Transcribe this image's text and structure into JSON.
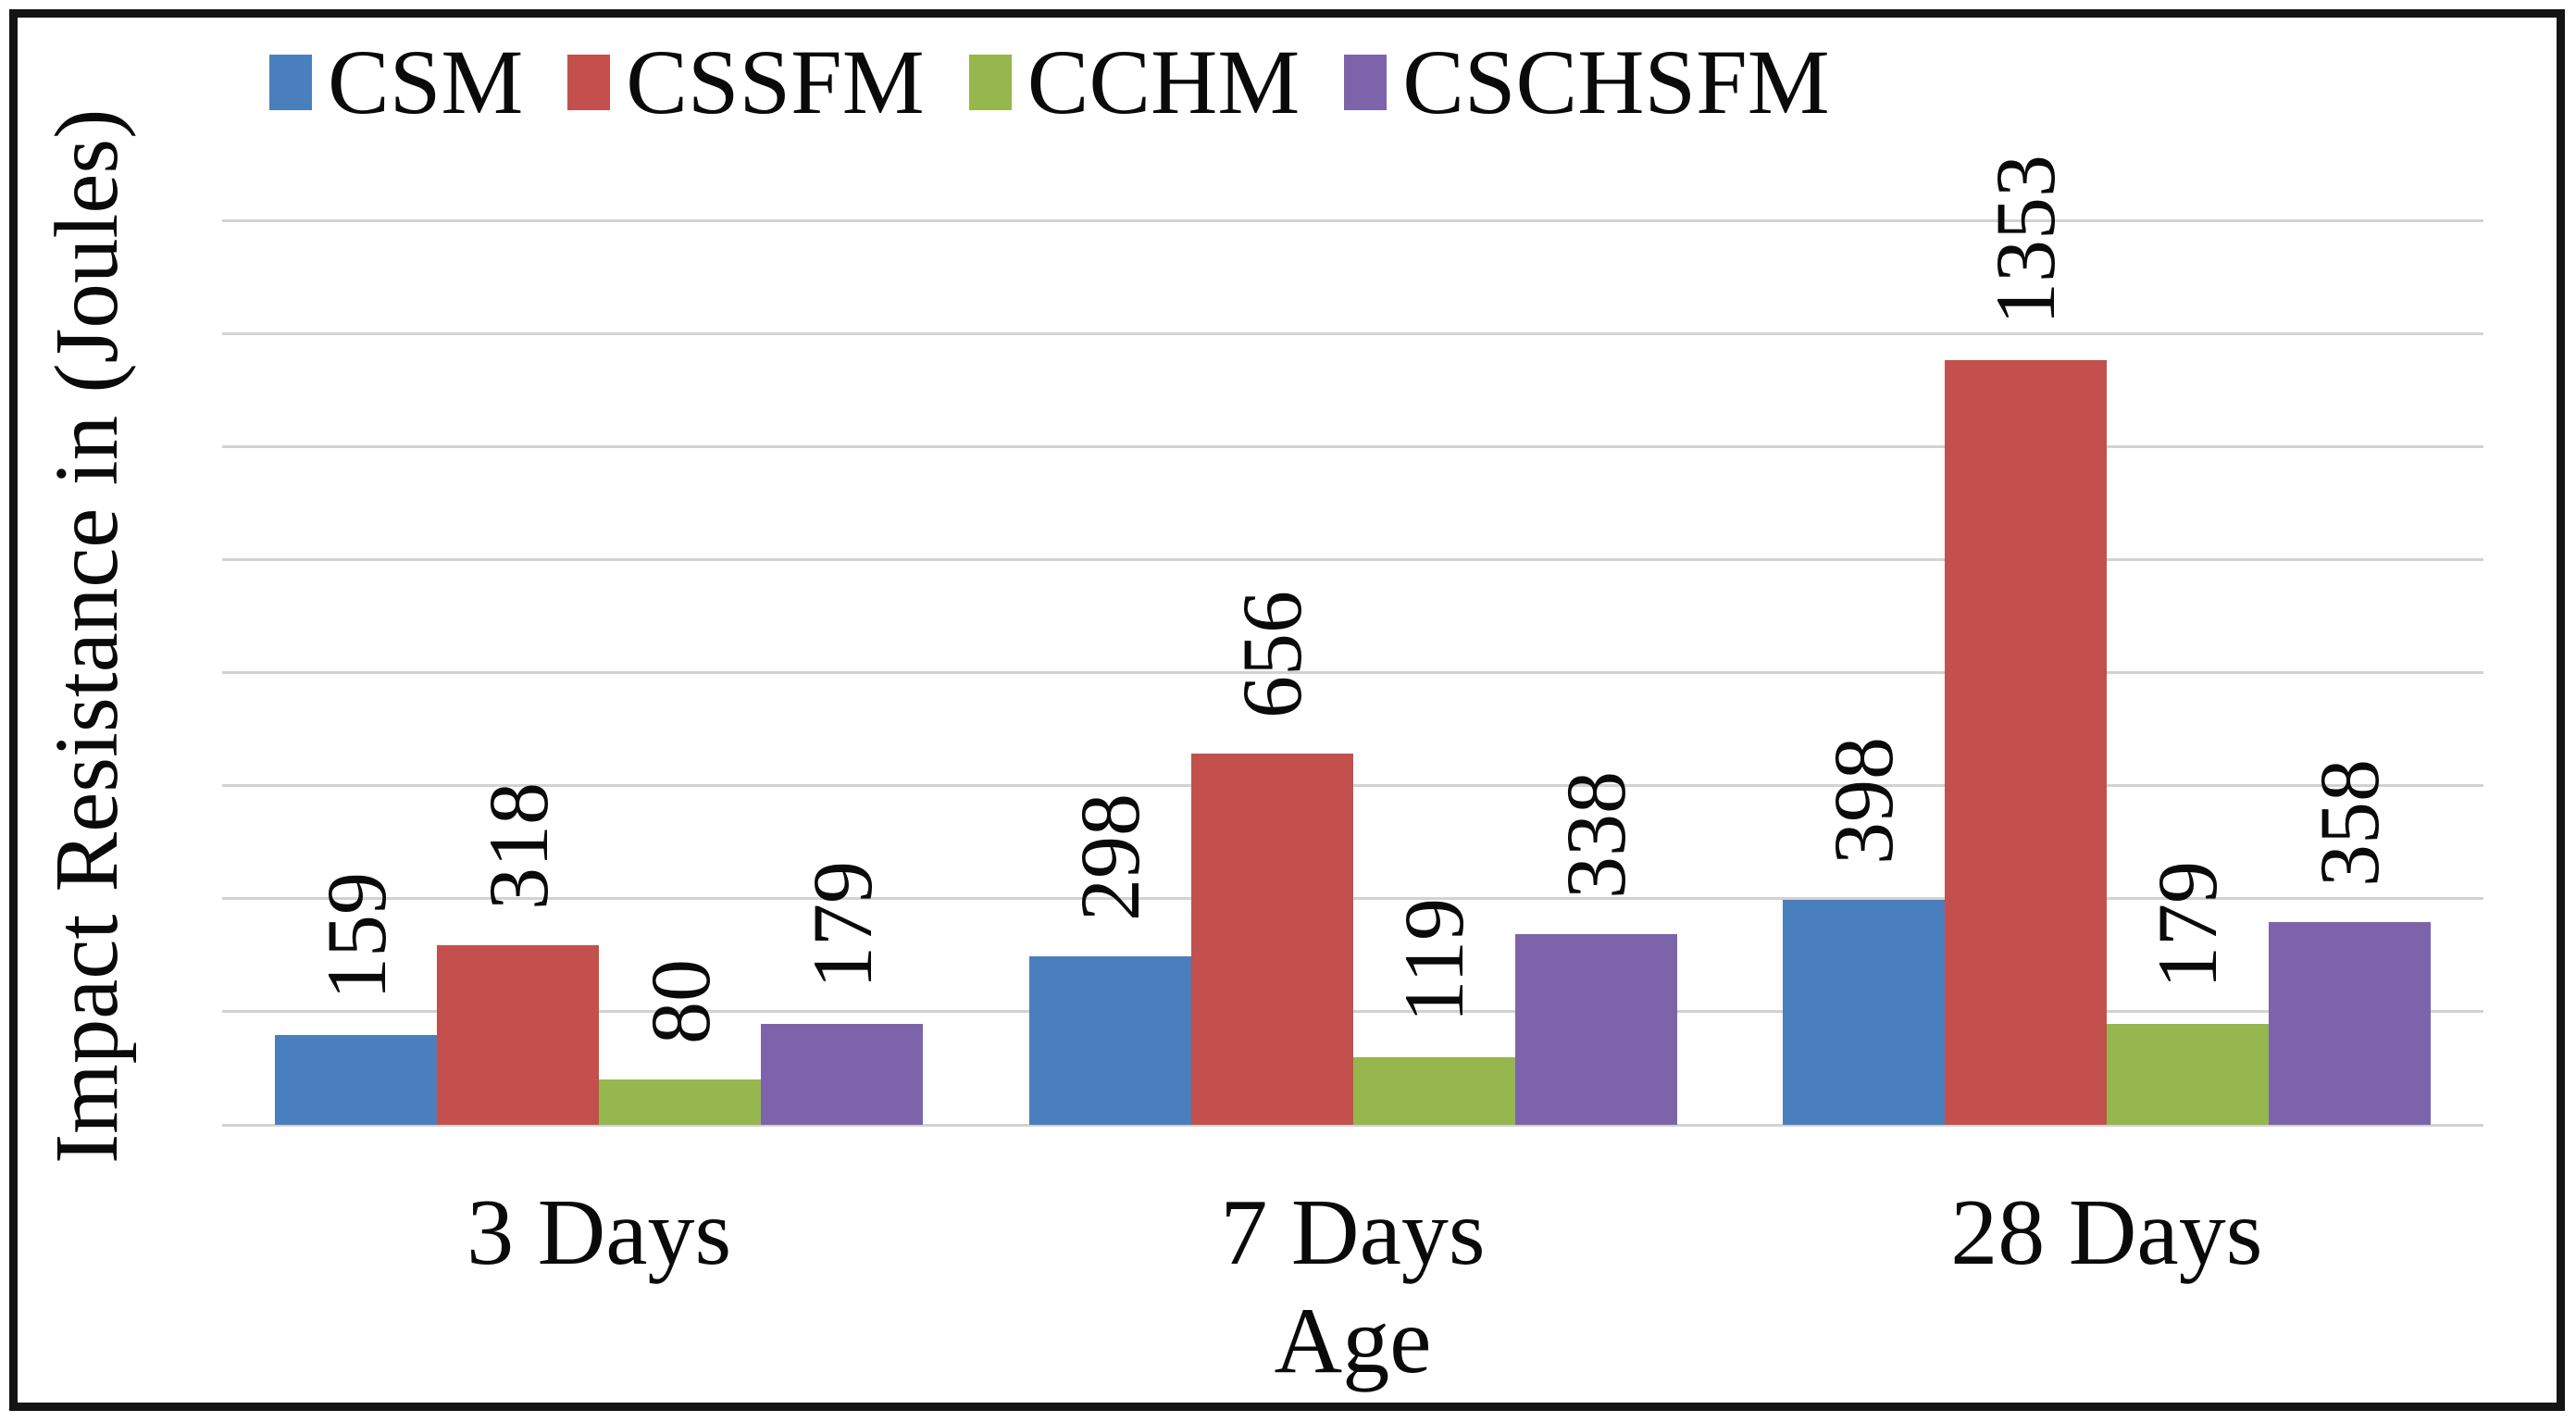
{
  "figure": {
    "background": "#ffffff",
    "border_color": "#141414",
    "text_color": "#0a0a0a",
    "gridline_color": "#d2d2d2"
  },
  "chart_data": {
    "type": "bar",
    "title": "",
    "categories": [
      "3 Days",
      "7 Days",
      "28 Days"
    ],
    "series": [
      {
        "name": "CSM",
        "color": "#4A7FBE",
        "values": [
          159,
          298,
          398
        ]
      },
      {
        "name": "CSSFM",
        "color": "#C3504C",
        "values": [
          318,
          656,
          1353
        ]
      },
      {
        "name": "CCHM",
        "color": "#96B64E",
        "values": [
          80,
          119,
          179
        ]
      },
      {
        "name": "CSCHSFM",
        "color": "#7D64AA",
        "values": [
          179,
          338,
          358
        ]
      }
    ],
    "xlabel": "Age",
    "ylabel": "Impact Resistance in (Joules)",
    "ylim": [
      0,
      1600
    ],
    "gridline_step": 200,
    "grid": true,
    "y_tick_labels_shown": false,
    "legend_position": "top-left",
    "value_labels": "rotated 90° counterclockwise above each bar"
  }
}
